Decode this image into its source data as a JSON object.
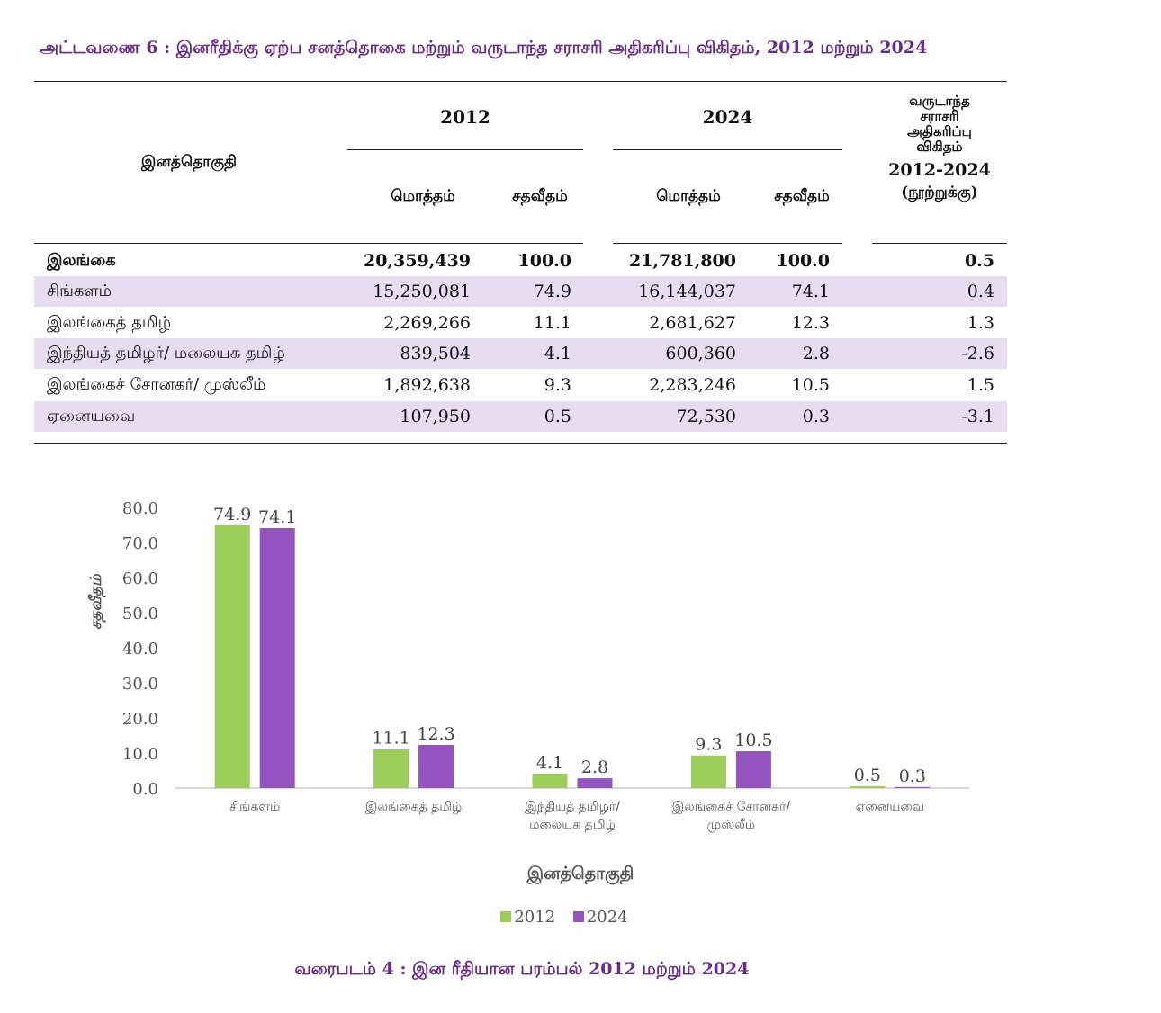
{
  "table": {
    "caption": "அட்டவணை 6 : இனரீதிக்கு ஏற்ப சனத்தொகை மற்றும் வருடாந்த சராசரி அதிகரிப்பு விகிதம், 2012 மற்றும் 2024",
    "header": {
      "category": "இனத்தொகுதி",
      "year1": "2012",
      "year2": "2024",
      "total": "மொத்தம்",
      "percent": "சதவீதம்",
      "rate_line1": "வருடாந்த",
      "rate_line2": "சராசரி",
      "rate_line3": "அதிகரிப்பு",
      "rate_line4": "விகிதம்",
      "rate_line5": "2012-2024",
      "rate_line6": "(நூற்றுக்கு)"
    },
    "rows": [
      {
        "name": "இலங்கை",
        "total_2012": "20,359,439",
        "pct_2012": "100.0",
        "total_2024": "21,781,800",
        "pct_2024": "100.0",
        "rate": "0.5"
      },
      {
        "name": "சிங்களம்",
        "total_2012": "15,250,081",
        "pct_2012": "74.9",
        "total_2024": "16,144,037",
        "pct_2024": "74.1",
        "rate": "0.4"
      },
      {
        "name": "இலங்கைத் தமிழ்",
        "total_2012": "2,269,266",
        "pct_2012": "11.1",
        "total_2024": "2,681,627",
        "pct_2024": "12.3",
        "rate": "1.3"
      },
      {
        "name": "இந்தியத் தமிழர்/ மலையக தமிழ்",
        "total_2012": "839,504",
        "pct_2012": "4.1",
        "total_2024": "600,360",
        "pct_2024": "2.8",
        "rate": "-2.6"
      },
      {
        "name": "இலங்கைச் சோனகர்/ முஸ்லீம்",
        "total_2012": "1,892,638",
        "pct_2012": "9.3",
        "total_2024": "2,283,246",
        "pct_2024": "10.5",
        "rate": "1.5"
      },
      {
        "name": "ஏனையவை",
        "total_2012": "107,950",
        "pct_2012": "0.5",
        "total_2024": "72,530",
        "pct_2024": "0.3",
        "rate": "-3.1"
      }
    ]
  },
  "chart_data": {
    "type": "bar",
    "categories": [
      [
        "சிங்களம்"
      ],
      [
        "இலங்கைத் தமிழ்"
      ],
      [
        "இந்தியத் தமிழர்/",
        "மலையக தமிழ்"
      ],
      [
        "இலங்கைச் சோனகர்/",
        "முஸ்லீம்"
      ],
      [
        "ஏனையவை"
      ]
    ],
    "series": [
      {
        "name": "2012",
        "color": "#9ccc5a",
        "values": [
          74.9,
          11.1,
          4.1,
          9.3,
          0.5
        ]
      },
      {
        "name": "2024",
        "color": "#9454c0",
        "values": [
          74.1,
          12.3,
          2.8,
          10.5,
          0.3
        ]
      }
    ],
    "ylabel": "சதவீதம்",
    "xlabel": "இனத்தொகுதி",
    "ylim": [
      0,
      80
    ],
    "yticks": [
      "0.0",
      "10.0",
      "20.0",
      "30.0",
      "40.0",
      "50.0",
      "60.0",
      "70.0",
      "80.0"
    ],
    "grid": false,
    "legend_position": "bottom",
    "caption": "வரைபடம் 4 : இன ரீதியான பரம்பல் 2012 மற்றும் 2024"
  }
}
